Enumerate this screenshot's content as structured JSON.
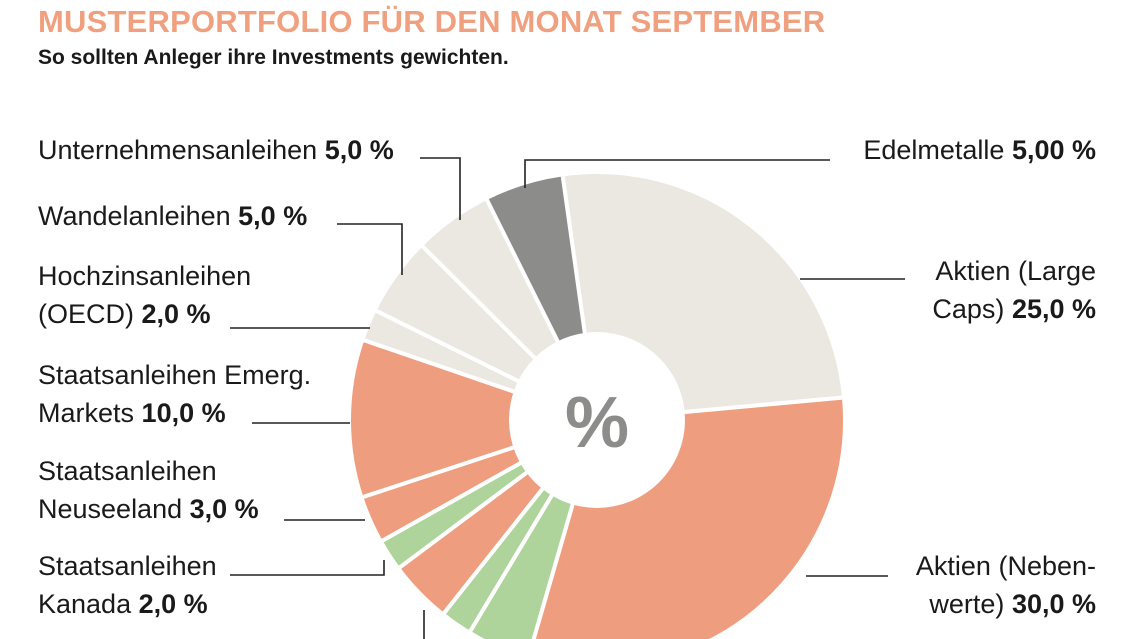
{
  "header": {
    "title": "MUSTERPORTFOLIO FÜR DEN MONAT SEPTEMBER",
    "subtitle": "So sollten Anleger ihre Investments gewichten."
  },
  "center_symbol": "%",
  "colors": {
    "title": "#F0A07E",
    "stocks": "#EE9E7E",
    "bonds_light": "#EBE8E1",
    "metals": "#8C8D8B",
    "green": "#AED49B",
    "separator": "#FFFFFF"
  },
  "chart_data": {
    "type": "pie",
    "title": "MUSTERPORTFOLIO FÜR DEN MONAT SEPTEMBER",
    "subtitle": "So sollten Anleger ihre Investments gewichten.",
    "unit": "%",
    "slices": [
      {
        "name": "Aktien (Large Caps)",
        "lines": [
          "Aktien (Large",
          "Caps)"
        ],
        "value_label": "25,0 %",
        "value": 25.0,
        "color": "#EBE8E1"
      },
      {
        "name": "Aktien (Nebenwerte)",
        "lines": [
          "Aktien (Neben-",
          "werte)"
        ],
        "value_label": "30,0 %",
        "value": 30.0,
        "color": "#EE9E7E"
      },
      {
        "name": "",
        "value_label": "",
        "value": 4.0,
        "color": "#AED49B"
      },
      {
        "name": "",
        "value_label": "",
        "value": 2.0,
        "color": "#AED49B"
      },
      {
        "name": "",
        "value_label": "",
        "value": 4.0,
        "color": "#EE9E7E"
      },
      {
        "name": "Staatsanleihen Kanada",
        "lines": [
          "Staatsanleihen",
          "Kanada"
        ],
        "value_label": "2,0 %",
        "value": 2.0,
        "color": "#AED49B"
      },
      {
        "name": "Staatsanleihen Neuseeland",
        "lines": [
          "Staatsanleihen",
          "Neuseeland"
        ],
        "value_label": "3,0 %",
        "value": 3.0,
        "color": "#EE9E7E"
      },
      {
        "name": "Staatsanleihen Emerg. Markets",
        "lines": [
          "Staatsanleihen Emerg.",
          "Markets"
        ],
        "value_label": "10,0 %",
        "value": 10.0,
        "color": "#EE9E7E"
      },
      {
        "name": "Hochzinsanleihen (OECD)",
        "lines": [
          "Hochzinsanleihen",
          "(OECD)"
        ],
        "value_label": "2,0 %",
        "value": 2.0,
        "color": "#EBE8E1"
      },
      {
        "name": "Wandelanleihen",
        "lines": [
          "Wandelanleihen"
        ],
        "value_label": "5,0 %",
        "value": 5.0,
        "color": "#EBE8E1"
      },
      {
        "name": "Unternehmensanleihen",
        "lines": [
          "Unternehmensanleihen"
        ],
        "value_label": "5,0 %",
        "value": 5.0,
        "color": "#EBE8E1"
      },
      {
        "name": "Edelmetalle",
        "lines": [
          "Edelmetalle"
        ],
        "value_label": "5,00 %",
        "value": 5.0,
        "color": "#8C8D8B"
      }
    ]
  }
}
